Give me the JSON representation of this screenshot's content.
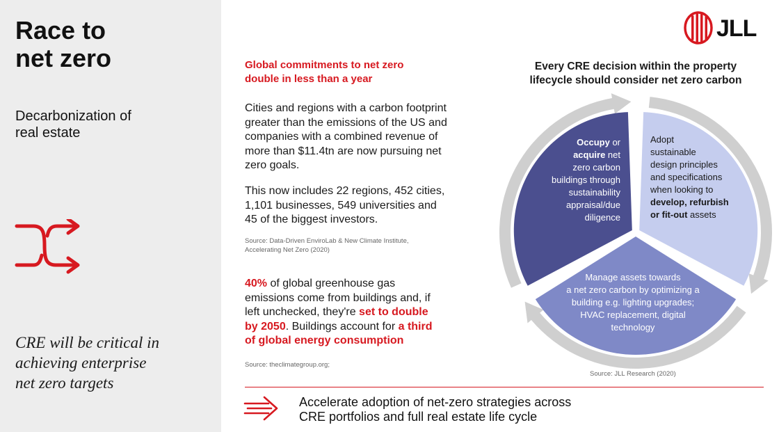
{
  "left": {
    "title_line1": "Race to",
    "title_line2": "net zero",
    "subtitle_line1": "Decarbonization of",
    "subtitle_line2": "real estate",
    "icon": "shuffle-arrows-icon",
    "quote_line1": "CRE will be critical in",
    "quote_line2": "achieving enterprise",
    "quote_line3": "net zero targets"
  },
  "middle": {
    "heading_line1": "Global commitments to net zero",
    "heading_line2": "double in less than a year",
    "para1_lines": [
      "Cities and regions with a carbon footprint",
      "greater than the emissions of the US and",
      "companies with a combined revenue of",
      "more than $11.4tn are now pursuing net",
      "zero goals."
    ],
    "para2_lines": [
      "This now includes 22 regions, 452 cities,",
      "1,101 businesses, 549 universities and",
      "45 of the biggest investors."
    ],
    "source1_line1": "Source: Data-Driven EnviroLab & New Climate Institute,",
    "source1_line2": "Accelerating Net Zero (2020)",
    "para3": {
      "highlight1": "40%",
      "text1": " of global greenhouse gas",
      "line2": "emissions come from buildings and, if",
      "line3_text": "left unchecked, they're ",
      "line3_highlight": "set to double",
      "line4_highlight": "by 2050",
      "line4_text": ". Buildings account for ",
      "line4_highlight2": "a third",
      "line5_highlight": "of global energy consumption"
    },
    "source2": "Source: theclimategroup.org;"
  },
  "right": {
    "logo_text": "JLL",
    "logo_icon": "jll-stripes-icon",
    "heading_line1": "Every CRE decision within the property",
    "heading_line2": "lifecycle should consider net zero carbon",
    "segments": {
      "occupy": {
        "b1": "Occupy",
        "t1": " or",
        "b2": "acquire",
        "t2": " net",
        "lines": [
          "zero carbon",
          "buildings through",
          "sustainability",
          "appraisal/due",
          "diligence"
        ]
      },
      "adopt": {
        "lines": [
          "Adopt",
          "sustainable",
          "design principles",
          "and specifications",
          "when looking to"
        ],
        "bold1": "develop, refurbish",
        "bold2": "or fit-out",
        "tail": " assets"
      },
      "manage": {
        "lines": [
          "Manage assets towards",
          "a net zero carbon by optimizing a",
          "building e.g. lighting upgrades;",
          "HVAC replacement, digital",
          "technology"
        ]
      }
    },
    "colors": {
      "occupy": "#4b4f8f",
      "adopt": "#c5cdee",
      "manage": "#7f89c7",
      "ring": "#cfcfcf",
      "accent": "#d71920"
    },
    "source3": "Source: JLL Research (2020)"
  },
  "bottom": {
    "icon": "fast-arrow-icon",
    "line1": "Accelerate adoption of net-zero strategies across",
    "line2": "CRE portfolios and full real estate life cycle"
  }
}
